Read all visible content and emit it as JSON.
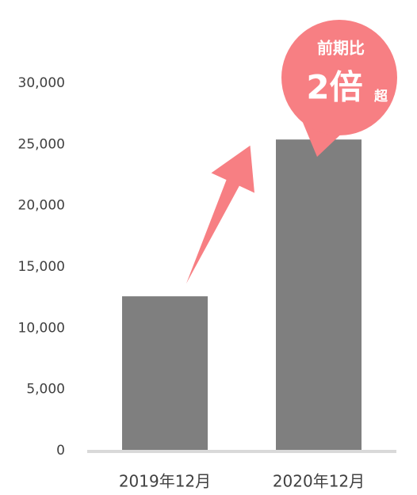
{
  "chart_data": {
    "type": "bar",
    "categories": [
      "2019年12月",
      "2020年12月"
    ],
    "values": [
      12600,
      25400
    ],
    "color": "#7f7f7f",
    "ylim": [
      0,
      30000
    ],
    "yticks": [
      0,
      {
        "value": 5000,
        "label": "5,000"
      },
      {
        "value": 10000,
        "label": "10,000"
      },
      {
        "value": 15000,
        "label": "15,000"
      },
      {
        "value": 20000,
        "label": "20,000"
      },
      {
        "value": 25000,
        "label": "25,000"
      },
      {
        "value": 30000,
        "label": "30,000"
      }
    ],
    "grid": false,
    "annotation": {
      "line1": "前期比",
      "big": "2倍",
      "small": "超"
    }
  }
}
